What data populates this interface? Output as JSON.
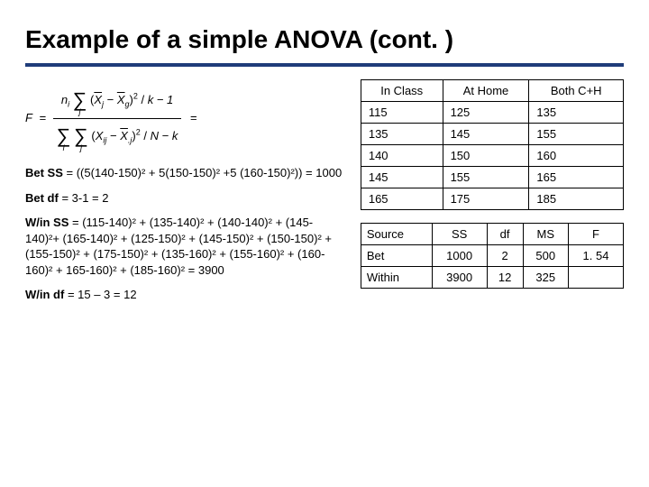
{
  "colors": {
    "underline": "#1f3c7a",
    "background": "#ffffff",
    "text": "#000000",
    "table_border": "#000000"
  },
  "title": "Example of a simple ANOVA (cont. )",
  "formula": {
    "f_equals": "F",
    "equals": "=",
    "num_left": "n",
    "num_subscript": "i",
    "xbar_j": "X",
    "xbar_j_sub": "j",
    "xbar_g": "X",
    "xbar_g_sub": "g",
    "over_k": "k − 1",
    "den_x_ij": "X",
    "den_x_ij_sub": "ij",
    "den_xbar_j": "X",
    "den_xbar_j_sub": ".j",
    "over_n": "N − k"
  },
  "calcs": {
    "betSS_label": "Bet SS",
    "betSS_text": " = ((5(140-150)² + 5(150-150)² +5 (160-150)²)) = 1000",
    "betdf_label": "Bet df",
    "betdf_text": " = 3-1 = 2",
    "winSS_label": "W/in SS",
    "winSS_text": " = (115-140)² + (135-140)² + (140-140)² + (145-140)²+ (165-140)² + (125-150)² + (145-150)² +  (150-150)² + (155-150)² + (175-150)² + (135-160)² + (155-160)² + (160-160)² + 165-160)² + (185-160)² = 3900",
    "windf_label": "W/in df",
    "windf_text": " = 15 – 3 = 12"
  },
  "data_table": {
    "headers": [
      "In Class",
      "At Home",
      "Both C+H"
    ],
    "rows": [
      [
        "115",
        "125",
        "135"
      ],
      [
        "135",
        "145",
        "155"
      ],
      [
        "140",
        "150",
        "160"
      ],
      [
        "145",
        "155",
        "165"
      ],
      [
        "165",
        "175",
        "185"
      ]
    ]
  },
  "anova_table": {
    "headers": [
      "Source",
      "SS",
      "df",
      "MS",
      "F"
    ],
    "rows": [
      [
        "Bet",
        "1000",
        "2",
        "500",
        "1. 54"
      ],
      [
        "Within",
        "3900",
        "12",
        "325",
        ""
      ]
    ]
  }
}
